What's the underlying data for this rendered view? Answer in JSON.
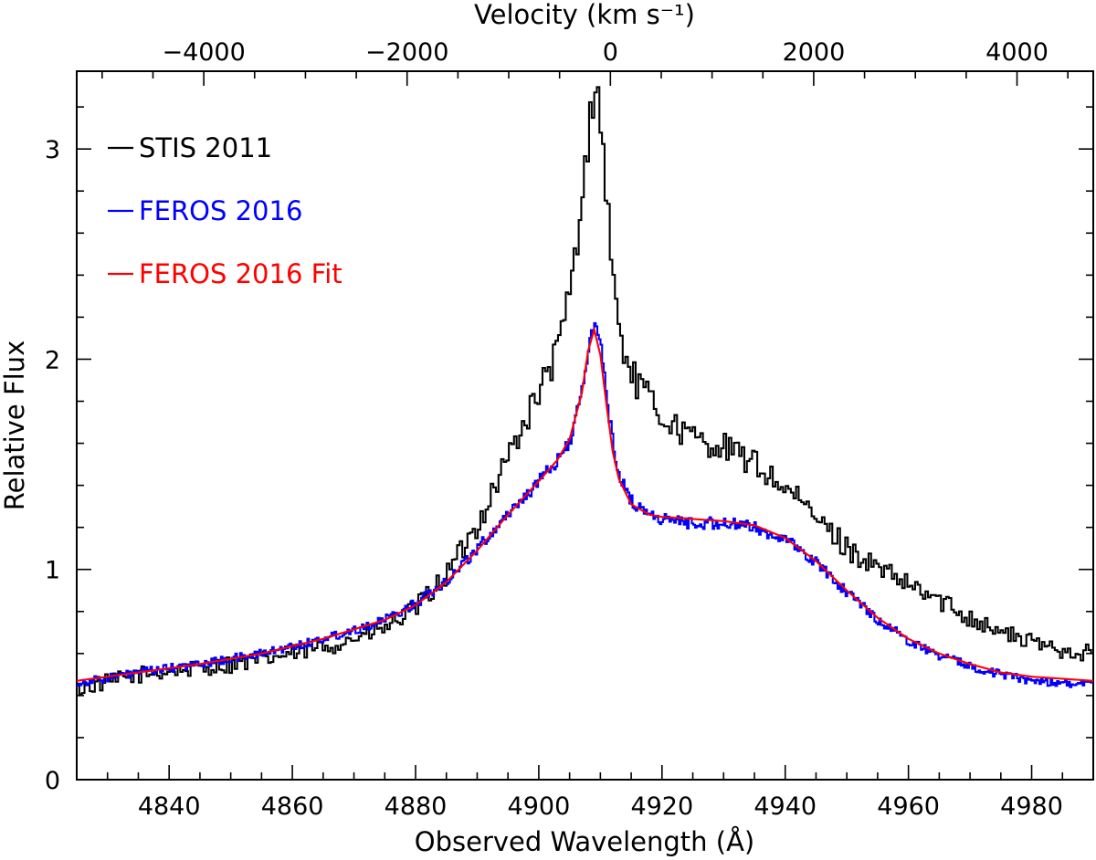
{
  "chart_data": {
    "type": "line",
    "xlabel": "Observed Wavelength (Å)",
    "ylabel": "Relative Flux",
    "top_xlabel": "Velocity (km s⁻¹)",
    "xlim": [
      4825,
      4990
    ],
    "ylim": [
      0,
      3.37
    ],
    "top_xlim": [
      -5250,
      4750
    ],
    "x_ticks": [
      4840,
      4860,
      4880,
      4900,
      4920,
      4940,
      4960,
      4980
    ],
    "x_tick_labels": [
      "4840",
      "4860",
      "4880",
      "4900",
      "4920",
      "4940",
      "4960",
      "4980"
    ],
    "y_ticks": [
      0,
      1,
      2,
      3
    ],
    "y_tick_labels": [
      "0",
      "1",
      "2",
      "3"
    ],
    "top_ticks": [
      -4000,
      -2000,
      0,
      2000,
      4000
    ],
    "top_tick_labels": [
      "−4000",
      "−2000",
      "0",
      "2000",
      "4000"
    ],
    "legend_position": "top-left",
    "series": [
      {
        "name": "STIS 2011",
        "color": "#000000",
        "style": "step-noisy",
        "x": [
          4825,
          4835,
          4845,
          4855,
          4865,
          4875,
          4880,
          4885,
          4890,
          4895,
          4900,
          4903,
          4905,
          4907,
          4908,
          4909,
          4910,
          4911,
          4912,
          4913,
          4915,
          4918,
          4920,
          4925,
          4930,
          4935,
          4940,
          4945,
          4950,
          4955,
          4960,
          4965,
          4970,
          4975,
          4980,
          4985,
          4990
        ],
        "y": [
          0.43,
          0.5,
          0.53,
          0.57,
          0.63,
          0.72,
          0.82,
          0.98,
          1.22,
          1.55,
          1.85,
          2.05,
          2.35,
          2.75,
          3.15,
          3.33,
          3.1,
          2.7,
          2.35,
          2.1,
          1.92,
          1.8,
          1.72,
          1.62,
          1.58,
          1.5,
          1.38,
          1.24,
          1.1,
          1.0,
          0.92,
          0.85,
          0.77,
          0.7,
          0.65,
          0.62,
          0.6
        ]
      },
      {
        "name": "FEROS 2016",
        "color": "#0000ff",
        "style": "step-noisy",
        "x": [
          4825,
          4835,
          4845,
          4855,
          4865,
          4875,
          4880,
          4885,
          4890,
          4895,
          4900,
          4903,
          4905,
          4907,
          4908,
          4909,
          4910,
          4911,
          4912,
          4913,
          4915,
          4918,
          4920,
          4925,
          4930,
          4935,
          4940,
          4945,
          4950,
          4955,
          4960,
          4965,
          4970,
          4975,
          4980,
          4985,
          4990
        ],
        "y": [
          0.46,
          0.51,
          0.55,
          0.6,
          0.67,
          0.76,
          0.84,
          0.95,
          1.1,
          1.27,
          1.42,
          1.52,
          1.62,
          1.85,
          2.05,
          2.2,
          2.05,
          1.8,
          1.58,
          1.45,
          1.32,
          1.26,
          1.24,
          1.22,
          1.22,
          1.2,
          1.14,
          1.03,
          0.89,
          0.76,
          0.66,
          0.59,
          0.54,
          0.5,
          0.47,
          0.46,
          0.45
        ]
      },
      {
        "name": "FEROS 2016 Fit",
        "color": "#ff0000",
        "style": "smooth",
        "x": [
          4825,
          4835,
          4845,
          4855,
          4865,
          4875,
          4880,
          4885,
          4890,
          4895,
          4900,
          4903,
          4905,
          4907,
          4908,
          4909,
          4910,
          4911,
          4912,
          4913,
          4915,
          4918,
          4920,
          4925,
          4930,
          4935,
          4940,
          4945,
          4950,
          4955,
          4960,
          4965,
          4970,
          4975,
          4980,
          4985,
          4990
        ],
        "y": [
          0.47,
          0.51,
          0.55,
          0.6,
          0.67,
          0.76,
          0.83,
          0.94,
          1.09,
          1.26,
          1.42,
          1.52,
          1.62,
          1.84,
          2.04,
          2.14,
          2.02,
          1.78,
          1.56,
          1.43,
          1.31,
          1.26,
          1.25,
          1.24,
          1.23,
          1.21,
          1.15,
          1.04,
          0.9,
          0.77,
          0.67,
          0.6,
          0.55,
          0.51,
          0.49,
          0.48,
          0.47
        ]
      }
    ]
  }
}
